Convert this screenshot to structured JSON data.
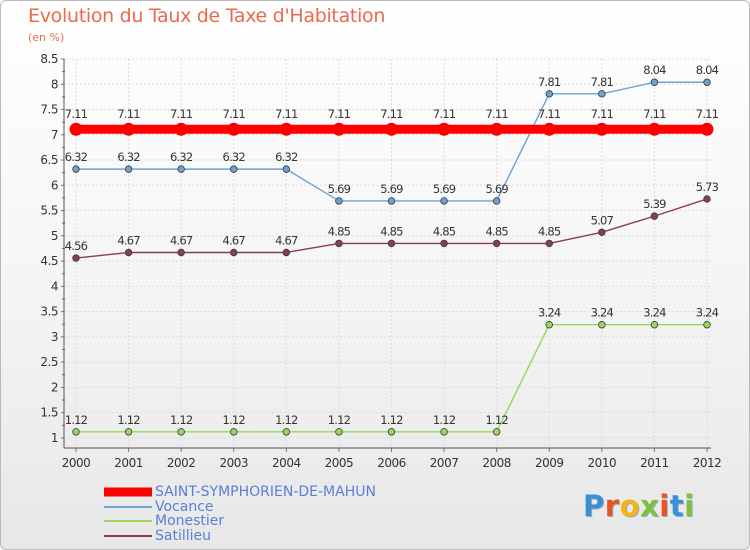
{
  "chart_data": {
    "type": "line",
    "title": "Evolution du Taux de Taxe d'Habitation",
    "subtitle": "(en %)",
    "x": [
      "2000",
      "2001",
      "2002",
      "2003",
      "2004",
      "2005",
      "2006",
      "2007",
      "2008",
      "2009",
      "2010",
      "2011",
      "2012"
    ],
    "ylim": [
      0.8,
      8.5
    ],
    "yticks": [
      "1",
      "1.5",
      "2",
      "2.5",
      "3",
      "3.5",
      "4",
      "4.5",
      "5",
      "5.5",
      "6",
      "6.5",
      "7",
      "7.5",
      "8",
      "8.5"
    ],
    "grid": true,
    "legend_position": "bottom-left",
    "series": [
      {
        "name": "SAINT-SYMPHORIEN-DE-MAHUN",
        "color": "#ff0000",
        "values": [
          7.11,
          7.11,
          7.11,
          7.11,
          7.11,
          7.11,
          7.11,
          7.11,
          7.11,
          7.11,
          7.11,
          7.11,
          7.11
        ],
        "labels": [
          "7.11",
          "7.11",
          "7.11",
          "7.11",
          "7.11",
          "7.11",
          "7.11",
          "7.11",
          "7.11",
          "7.11",
          "7.11",
          "7.11",
          "7.11"
        ]
      },
      {
        "name": "Vocance",
        "color": "#6da2d3",
        "values": [
          6.32,
          6.32,
          6.32,
          6.32,
          6.32,
          5.69,
          5.69,
          5.69,
          5.69,
          7.81,
          7.81,
          8.04,
          8.04
        ],
        "labels": [
          "6.32",
          "6.32",
          "6.32",
          "6.32",
          "6.32",
          "5.69",
          "5.69",
          "5.69",
          "5.69",
          "7.81",
          "7.81",
          "8.04",
          "8.04"
        ]
      },
      {
        "name": "Monestier",
        "color": "#99d65c",
        "values": [
          1.12,
          1.12,
          1.12,
          1.12,
          1.12,
          1.12,
          1.12,
          1.12,
          1.12,
          3.24,
          3.24,
          3.24,
          3.24
        ],
        "labels": [
          "1.12",
          "1.12",
          "1.12",
          "1.12",
          "1.12",
          "1.12",
          "1.12",
          "1.12",
          "1.12",
          "3.24",
          "3.24",
          "3.24",
          "3.24"
        ]
      },
      {
        "name": "Satillieu",
        "color": "#8b3f4a",
        "values": [
          4.56,
          4.67,
          4.67,
          4.67,
          4.67,
          4.85,
          4.85,
          4.85,
          4.85,
          4.85,
          5.07,
          5.39,
          5.73
        ],
        "labels": [
          "4.56",
          "4.67",
          "4.67",
          "4.67",
          "4.67",
          "4.85",
          "4.85",
          "4.85",
          "4.85",
          "4.85",
          "5.07",
          "5.39",
          "5.73"
        ]
      }
    ]
  },
  "logo": {
    "letters": [
      "P",
      "r",
      "o",
      "x",
      "i",
      "t",
      "i"
    ],
    "colors": [
      "#3b8fd6",
      "#e9531e",
      "#f2b316",
      "#7cc23d",
      "#e9531e",
      "#3b8fd6",
      "#7cc23d"
    ]
  }
}
